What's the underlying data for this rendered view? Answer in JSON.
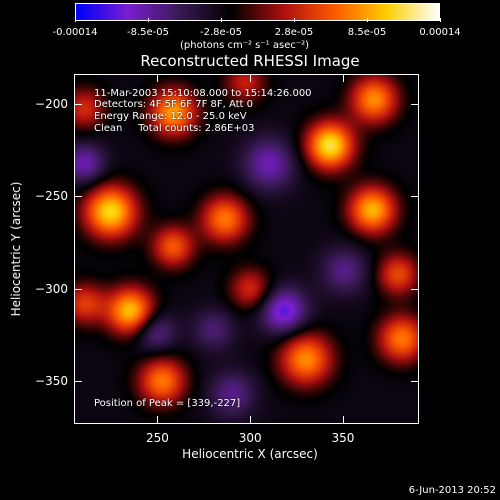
{
  "chart_data": {
    "type": "heatmap",
    "title": "Reconstructed RHESSI Image",
    "xlabel": "Heliocentric X (arcsec)",
    "ylabel": "Heliocentric Y (arcsec)",
    "xlim": [
      205,
      391
    ],
    "ylim": [
      -373,
      -184
    ],
    "xticks": [
      "250",
      "300",
      "350"
    ],
    "yticks": [
      "-200",
      "-250",
      "-300",
      "-350"
    ],
    "colorbar": {
      "ticks": [
        "-0.00014",
        "-8.5e-05",
        "-2.8e-05",
        "2.8e-05",
        "8.5e-05",
        "0.00014"
      ],
      "units": "(photons cm⁻² s⁻¹ asec⁻²)",
      "range": [
        -0.00014,
        0.00014
      ],
      "colormap": [
        "#0000ff",
        "#7b1fd0",
        "#3a1a55",
        "#000000",
        "#b01010",
        "#ff5a00",
        "#ffd000",
        "#ffffff"
      ]
    },
    "annotations": {
      "time": "11-Mar-2003 15:10:08.000 to 15:14:26.000",
      "detectors": "Detectors: 4F 5F 6F 7F 8F, Att 0",
      "energy": "Energy Range: 12.0 - 25.0 keV",
      "clean": "Clean     Total counts: 2.86E+03",
      "peak": "Position of Peak = [339,-227]"
    },
    "peak": [
      339,
      -227
    ],
    "sources": [
      {
        "x": 343,
        "y": -222,
        "amp": 1.0,
        "sigma": 9
      },
      {
        "x": 224,
        "y": -258,
        "amp": 0.95,
        "sigma": 10
      },
      {
        "x": 258,
        "y": -204,
        "amp": 0.8,
        "sigma": 9
      },
      {
        "x": 367,
        "y": -197,
        "amp": 0.75,
        "sigma": 9
      },
      {
        "x": 235,
        "y": -312,
        "amp": 0.9,
        "sigma": 9
      },
      {
        "x": 366,
        "y": -257,
        "amp": 0.85,
        "sigma": 9
      },
      {
        "x": 286,
        "y": -262,
        "amp": 0.7,
        "sigma": 9
      },
      {
        "x": 258,
        "y": -277,
        "amp": 0.6,
        "sigma": 8
      },
      {
        "x": 330,
        "y": -338,
        "amp": 0.75,
        "sigma": 10
      },
      {
        "x": 382,
        "y": -327,
        "amp": 0.7,
        "sigma": 9
      },
      {
        "x": 252,
        "y": -350,
        "amp": 0.7,
        "sigma": 9
      },
      {
        "x": 380,
        "y": -292,
        "amp": 0.55,
        "sigma": 8
      },
      {
        "x": 210,
        "y": -308,
        "amp": 0.5,
        "sigma": 8
      },
      {
        "x": 300,
        "y": -300,
        "amp": 0.45,
        "sigma": 8
      },
      {
        "x": 210,
        "y": -202,
        "amp": 0.45,
        "sigma": 8
      },
      {
        "x": 297,
        "y": -188,
        "amp": 0.4,
        "sigma": 8
      },
      {
        "x": 310,
        "y": -232,
        "amp": -0.45,
        "sigma": 10
      },
      {
        "x": 318,
        "y": -312,
        "amp": -0.6,
        "sigma": 9
      },
      {
        "x": 210,
        "y": -232,
        "amp": -0.45,
        "sigma": 8
      },
      {
        "x": 248,
        "y": -323,
        "amp": -0.4,
        "sigma": 8
      },
      {
        "x": 280,
        "y": -322,
        "amp": -0.3,
        "sigma": 8
      },
      {
        "x": 351,
        "y": -290,
        "amp": -0.35,
        "sigma": 9
      },
      {
        "x": 290,
        "y": -357,
        "amp": -0.35,
        "sigma": 9
      }
    ]
  },
  "timestamp": "6-Jun-2013 20:52"
}
